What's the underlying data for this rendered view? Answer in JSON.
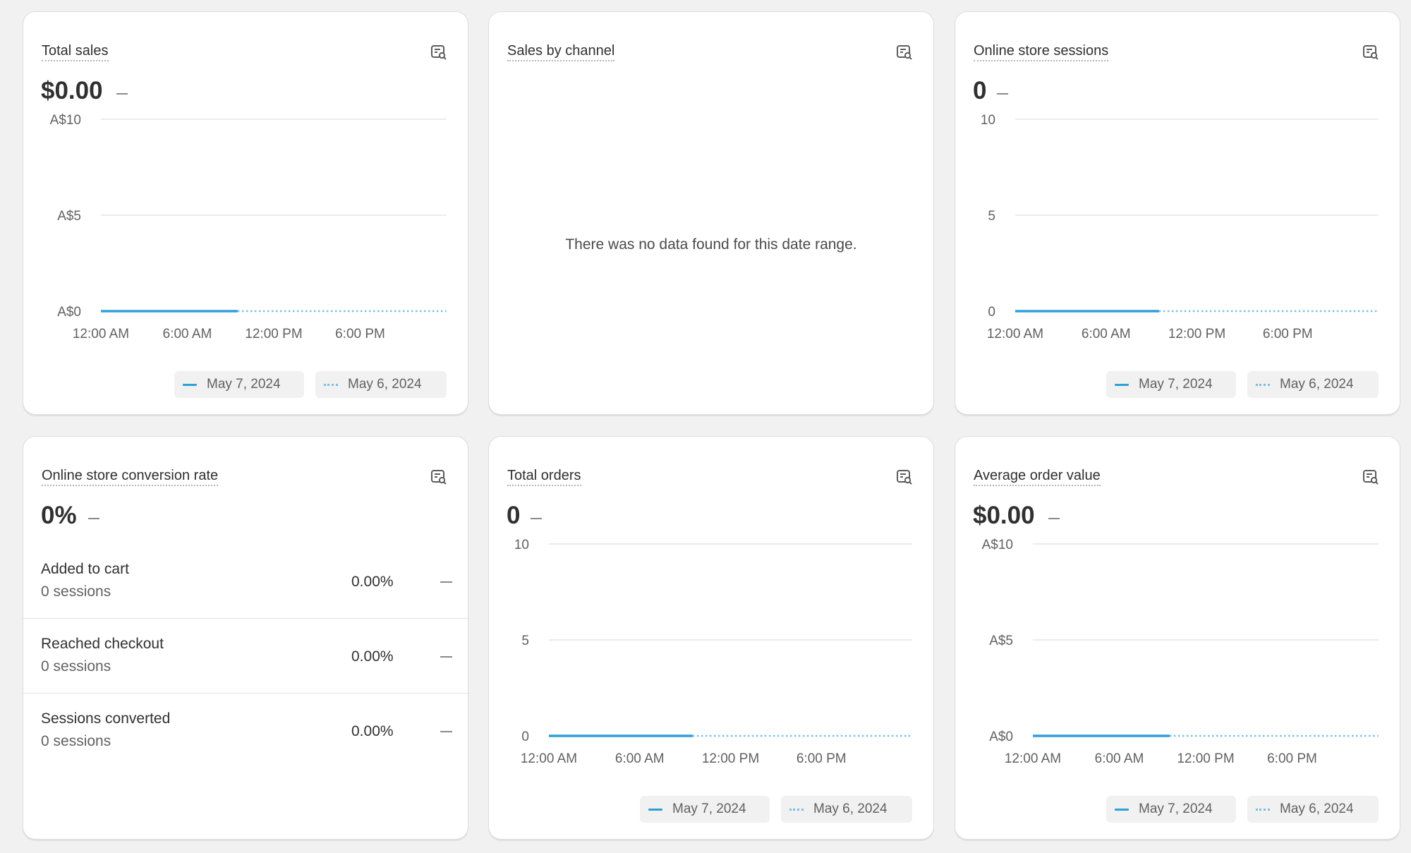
{
  "colors": {
    "current_series": "#2f9fd8",
    "comparison_series": "#7bbfe4",
    "gridline": "#e6e6e6",
    "background": "#f1f1f1"
  },
  "icons": {
    "card_action": "chart-search-icon"
  },
  "legend": {
    "current": "May 7, 2024",
    "previous": "May 6, 2024"
  },
  "cards": {
    "total_sales": {
      "title": "Total sales",
      "value": "$0.00",
      "chart_data": {
        "type": "line",
        "x_ticks": [
          "12:00 AM",
          "6:00 AM",
          "12:00 PM",
          "6:00 PM"
        ],
        "y_ticks": [
          "A$0",
          "A$5",
          "A$10"
        ],
        "ylim": [
          0,
          10
        ],
        "grid": true,
        "legend_placement": "bottom-right",
        "series": [
          {
            "name": "May 7, 2024",
            "style": "solid",
            "x": [
              "12:00 AM",
              "9:30 AM"
            ],
            "y": [
              0,
              0
            ]
          },
          {
            "name": "May 6, 2024",
            "style": "dotted",
            "x": [
              "9:30 AM",
              "11:59 PM"
            ],
            "y": [
              0,
              0
            ]
          }
        ]
      }
    },
    "sales_by_channel": {
      "title": "Sales by channel",
      "empty_message": "There was no data found for this date range."
    },
    "online_store_sessions": {
      "title": "Online store sessions",
      "value": "0",
      "chart_data": {
        "type": "line",
        "x_ticks": [
          "12:00 AM",
          "6:00 AM",
          "12:00 PM",
          "6:00 PM"
        ],
        "y_ticks": [
          "0",
          "5",
          "10"
        ],
        "ylim": [
          0,
          10
        ],
        "grid": true,
        "legend_placement": "bottom-right",
        "series": [
          {
            "name": "May 7, 2024",
            "style": "solid",
            "x": [
              "12:00 AM",
              "9:30 AM"
            ],
            "y": [
              0,
              0
            ]
          },
          {
            "name": "May 6, 2024",
            "style": "dotted",
            "x": [
              "9:30 AM",
              "11:59 PM"
            ],
            "y": [
              0,
              0
            ]
          }
        ]
      }
    },
    "conversion_rate": {
      "title": "Online store conversion rate",
      "value": "0%",
      "rows": [
        {
          "label": "Added to cart",
          "sessions": "0 sessions",
          "percent": "0.00%"
        },
        {
          "label": "Reached checkout",
          "sessions": "0 sessions",
          "percent": "0.00%"
        },
        {
          "label": "Sessions converted",
          "sessions": "0 sessions",
          "percent": "0.00%"
        }
      ]
    },
    "total_orders": {
      "title": "Total orders",
      "value": "0",
      "chart_data": {
        "type": "line",
        "x_ticks": [
          "12:00 AM",
          "6:00 AM",
          "12:00 PM",
          "6:00 PM"
        ],
        "y_ticks": [
          "0",
          "5",
          "10"
        ],
        "ylim": [
          0,
          10
        ],
        "grid": true,
        "legend_placement": "bottom-right",
        "series": [
          {
            "name": "May 7, 2024",
            "style": "solid",
            "x": [
              "12:00 AM",
              "9:30 AM"
            ],
            "y": [
              0,
              0
            ]
          },
          {
            "name": "May 6, 2024",
            "style": "dotted",
            "x": [
              "9:30 AM",
              "11:59 PM"
            ],
            "y": [
              0,
              0
            ]
          }
        ]
      }
    },
    "average_order_value": {
      "title": "Average order value",
      "value": "$0.00",
      "chart_data": {
        "type": "line",
        "x_ticks": [
          "12:00 AM",
          "6:00 AM",
          "12:00 PM",
          "6:00 PM"
        ],
        "y_ticks": [
          "A$0",
          "A$5",
          "A$10"
        ],
        "ylim": [
          0,
          10
        ],
        "grid": true,
        "legend_placement": "bottom-right",
        "series": [
          {
            "name": "May 7, 2024",
            "style": "solid",
            "x": [
              "12:00 AM",
              "9:30 AM"
            ],
            "y": [
              0,
              0
            ]
          },
          {
            "name": "May 6, 2024",
            "style": "dotted",
            "x": [
              "9:30 AM",
              "11:59 PM"
            ],
            "y": [
              0,
              0
            ]
          }
        ]
      }
    }
  }
}
